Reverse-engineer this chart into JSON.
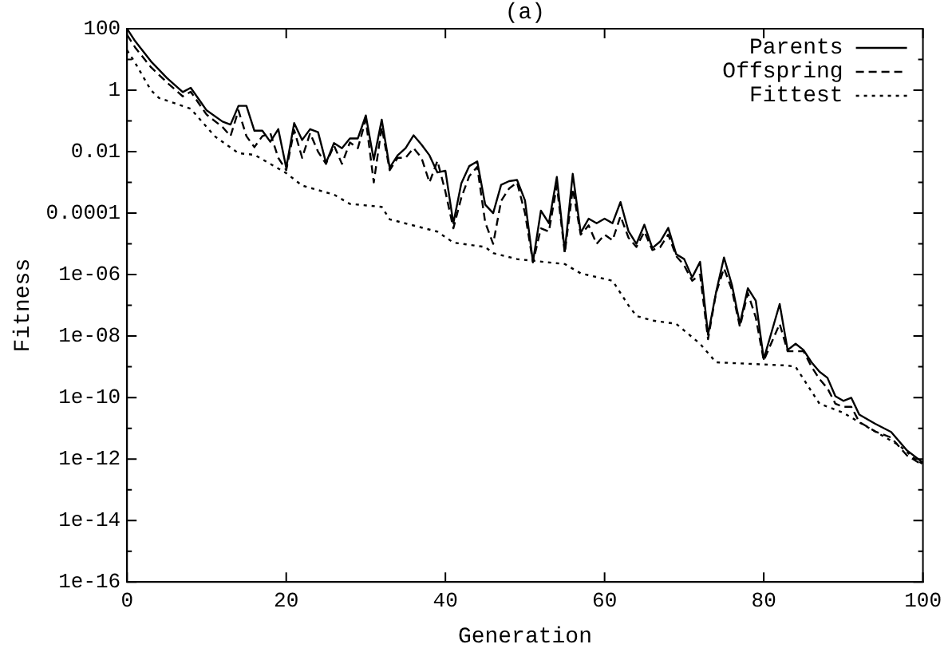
{
  "chart_data": {
    "type": "line",
    "title": "(a)",
    "xlabel": "Generation",
    "ylabel": "Fitness",
    "log": "y",
    "grid": false,
    "legend": "top right",
    "marker": "none",
    "xlim": [
      0,
      100
    ],
    "xticks": [
      0,
      20,
      40,
      60,
      80,
      100
    ],
    "ylim": [
      1e-16,
      100
    ],
    "yticks": [
      100,
      {
        "value": 10,
        "label": null
      },
      1,
      {
        "value": 0.1,
        "label": null
      },
      0.01,
      {
        "value": 0.001,
        "label": null
      },
      0.0001,
      {
        "value": 1e-05,
        "label": null
      },
      {
        "value": 1e-06,
        "label": "1e-06"
      },
      {
        "value": 1e-07,
        "label": null
      },
      {
        "value": 1e-08,
        "label": "1e-08"
      },
      {
        "value": 1e-09,
        "label": null
      },
      {
        "value": 1e-10,
        "label": "1e-10"
      },
      {
        "value": 1e-11,
        "label": null
      },
      {
        "value": 1e-12,
        "label": "1e-12"
      },
      {
        "value": 1e-13,
        "label": null
      },
      {
        "value": 1e-14,
        "label": "1e-14"
      },
      {
        "value": 1e-15,
        "label": null
      },
      {
        "value": 1e-16,
        "label": "1e-16"
      }
    ],
    "series": [
      {
        "name": "Parents",
        "color": "#000000",
        "line_style": "solid",
        "x": [
          0,
          1,
          3,
          5,
          7,
          8,
          10,
          12,
          13,
          14,
          15,
          16,
          17,
          18,
          19,
          20,
          21,
          22,
          23,
          24,
          25,
          26,
          27,
          28,
          29,
          30,
          31,
          32,
          33,
          34,
          35,
          36,
          37,
          38,
          39,
          40,
          41,
          42,
          43,
          44,
          45,
          46,
          47,
          48,
          49,
          50,
          51,
          52,
          53,
          54,
          55,
          56,
          57,
          58,
          59,
          60,
          61,
          62,
          63,
          64,
          65,
          66,
          67,
          68,
          69,
          70,
          71,
          72,
          73,
          74,
          75,
          76,
          77,
          78,
          79,
          80,
          81,
          82,
          83,
          84,
          85,
          86,
          87,
          88,
          89,
          90,
          91,
          92,
          94,
          96,
          98,
          100
        ],
        "values": [
          100,
          40,
          8.7,
          2.5,
          0.87,
          1.2,
          0.22,
          0.095,
          0.076,
          0.31,
          0.31,
          0.048,
          0.048,
          0.021,
          0.054,
          0.003,
          0.085,
          0.024,
          0.054,
          0.043,
          0.0043,
          0.019,
          0.013,
          0.027,
          0.027,
          0.15,
          0.0054,
          0.11,
          0.003,
          0.0076,
          0.013,
          0.034,
          0.017,
          0.0076,
          0.0021,
          0.0024,
          4.7e-05,
          0.00093,
          0.0034,
          0.0048,
          0.00019,
          0.0001,
          0.00083,
          0.0011,
          0.0012,
          0.00026,
          2.6e-06,
          0.00012,
          4.7e-05,
          0.0015,
          5.8e-06,
          0.0019,
          2.3e-05,
          6.6e-05,
          4.7e-05,
          6.6e-05,
          4.7e-05,
          0.00023,
          2.6e-05,
          1e-05,
          4.2e-05,
          7.3e-06,
          1.2e-05,
          3.3e-05,
          4.6e-06,
          3.2e-06,
          8.1e-07,
          2.6e-06,
          1.1e-08,
          2.6e-07,
          3.6e-06,
          4.6e-07,
          2.5e-08,
          3.6e-07,
          1.4e-07,
          1.8e-09,
          1.4e-08,
          1.1e-07,
          3.5e-09,
          5.6e-09,
          3.5e-09,
          1.4e-09,
          6.9e-10,
          4.4e-10,
          1.1e-10,
          7.8e-11,
          9.8e-11,
          2.8e-11,
          1.4e-11,
          7.6e-12,
          1.9e-12,
          7.6e-13
        ]
      },
      {
        "name": "Offspring",
        "color": "#000000",
        "line_style": "dashed",
        "x": [
          0,
          1,
          3,
          5,
          7,
          8,
          10,
          12,
          13,
          14,
          15,
          16,
          17,
          18,
          19,
          20,
          21,
          22,
          23,
          24,
          25,
          26,
          27,
          28,
          29,
          30,
          31,
          32,
          33,
          34,
          35,
          36,
          37,
          38,
          39,
          40,
          41,
          42,
          43,
          44,
          45,
          46,
          47,
          48,
          49,
          50,
          51,
          52,
          53,
          54,
          55,
          56,
          57,
          58,
          59,
          60,
          61,
          62,
          63,
          64,
          65,
          66,
          67,
          68,
          69,
          70,
          71,
          72,
          73,
          74,
          75,
          76,
          77,
          78,
          79,
          80,
          81,
          82,
          83,
          84,
          85,
          86,
          87,
          88,
          89,
          90,
          91,
          92,
          94,
          96,
          98,
          100
        ],
        "values": [
          63,
          25,
          5.6,
          1.8,
          0.63,
          0.89,
          0.16,
          0.063,
          0.032,
          0.22,
          0.032,
          0.014,
          0.032,
          0.04,
          0.0063,
          0.0025,
          0.05,
          0.0063,
          0.04,
          0.01,
          0.004,
          0.016,
          0.004,
          0.02,
          0.013,
          0.11,
          0.001,
          0.063,
          0.0025,
          0.0063,
          0.0063,
          0.013,
          0.0063,
          0.001,
          0.005,
          0.0005,
          3.2e-05,
          0.00032,
          0.0016,
          0.0032,
          5e-05,
          1e-05,
          0.00025,
          0.00063,
          0.001,
          0.0001,
          2.5e-06,
          3.2e-05,
          2.5e-05,
          0.00079,
          5e-06,
          0.00063,
          2e-05,
          4e-05,
          1e-05,
          2e-05,
          1.3e-05,
          7.9e-05,
          1.6e-05,
          7.9e-06,
          2.5e-05,
          6.3e-06,
          7.9e-06,
          2e-05,
          4e-06,
          2e-06,
          6.3e-07,
          1e-06,
          7.9e-09,
          2.5e-07,
          1.6e-06,
          3.2e-07,
          2e-08,
          2.5e-07,
          4e-08,
          1.6e-09,
          6.3e-09,
          2.5e-08,
          3.2e-09,
          3.2e-09,
          3.2e-09,
          1e-09,
          4e-10,
          2e-10,
          6.3e-11,
          5e-11,
          5e-11,
          1.6e-11,
          7.9e-12,
          5e-12,
          1.3e-12,
          6.3e-13
        ]
      },
      {
        "name": "Fittest",
        "color": "#000000",
        "line_style": "dotted",
        "x": [
          0,
          1,
          3,
          4,
          8,
          11,
          14,
          16,
          20,
          22,
          26,
          28,
          32,
          33,
          39,
          41,
          45,
          46,
          49,
          55,
          57,
          61,
          63,
          64,
          66,
          69,
          72,
          74,
          83,
          84,
          87,
          90,
          93,
          97,
          99,
          100
        ],
        "values": [
          20,
          7.9,
          1,
          0.56,
          0.25,
          0.032,
          0.0089,
          0.0079,
          0.002,
          0.00079,
          0.0004,
          0.0002,
          0.00016,
          6.3e-05,
          2.5e-05,
          1.1e-05,
          7.9e-06,
          5e-06,
          3.2e-06,
          2.2e-06,
          1.1e-06,
          6.3e-07,
          1e-07,
          4.5e-08,
          3.2e-08,
          2.5e-08,
          5.6e-09,
          1.4e-09,
          1.1e-09,
          1e-09,
          6.3e-11,
          3.2e-11,
          1.1e-11,
          2.8e-12,
          1e-12,
          6.8e-13
        ]
      }
    ]
  }
}
